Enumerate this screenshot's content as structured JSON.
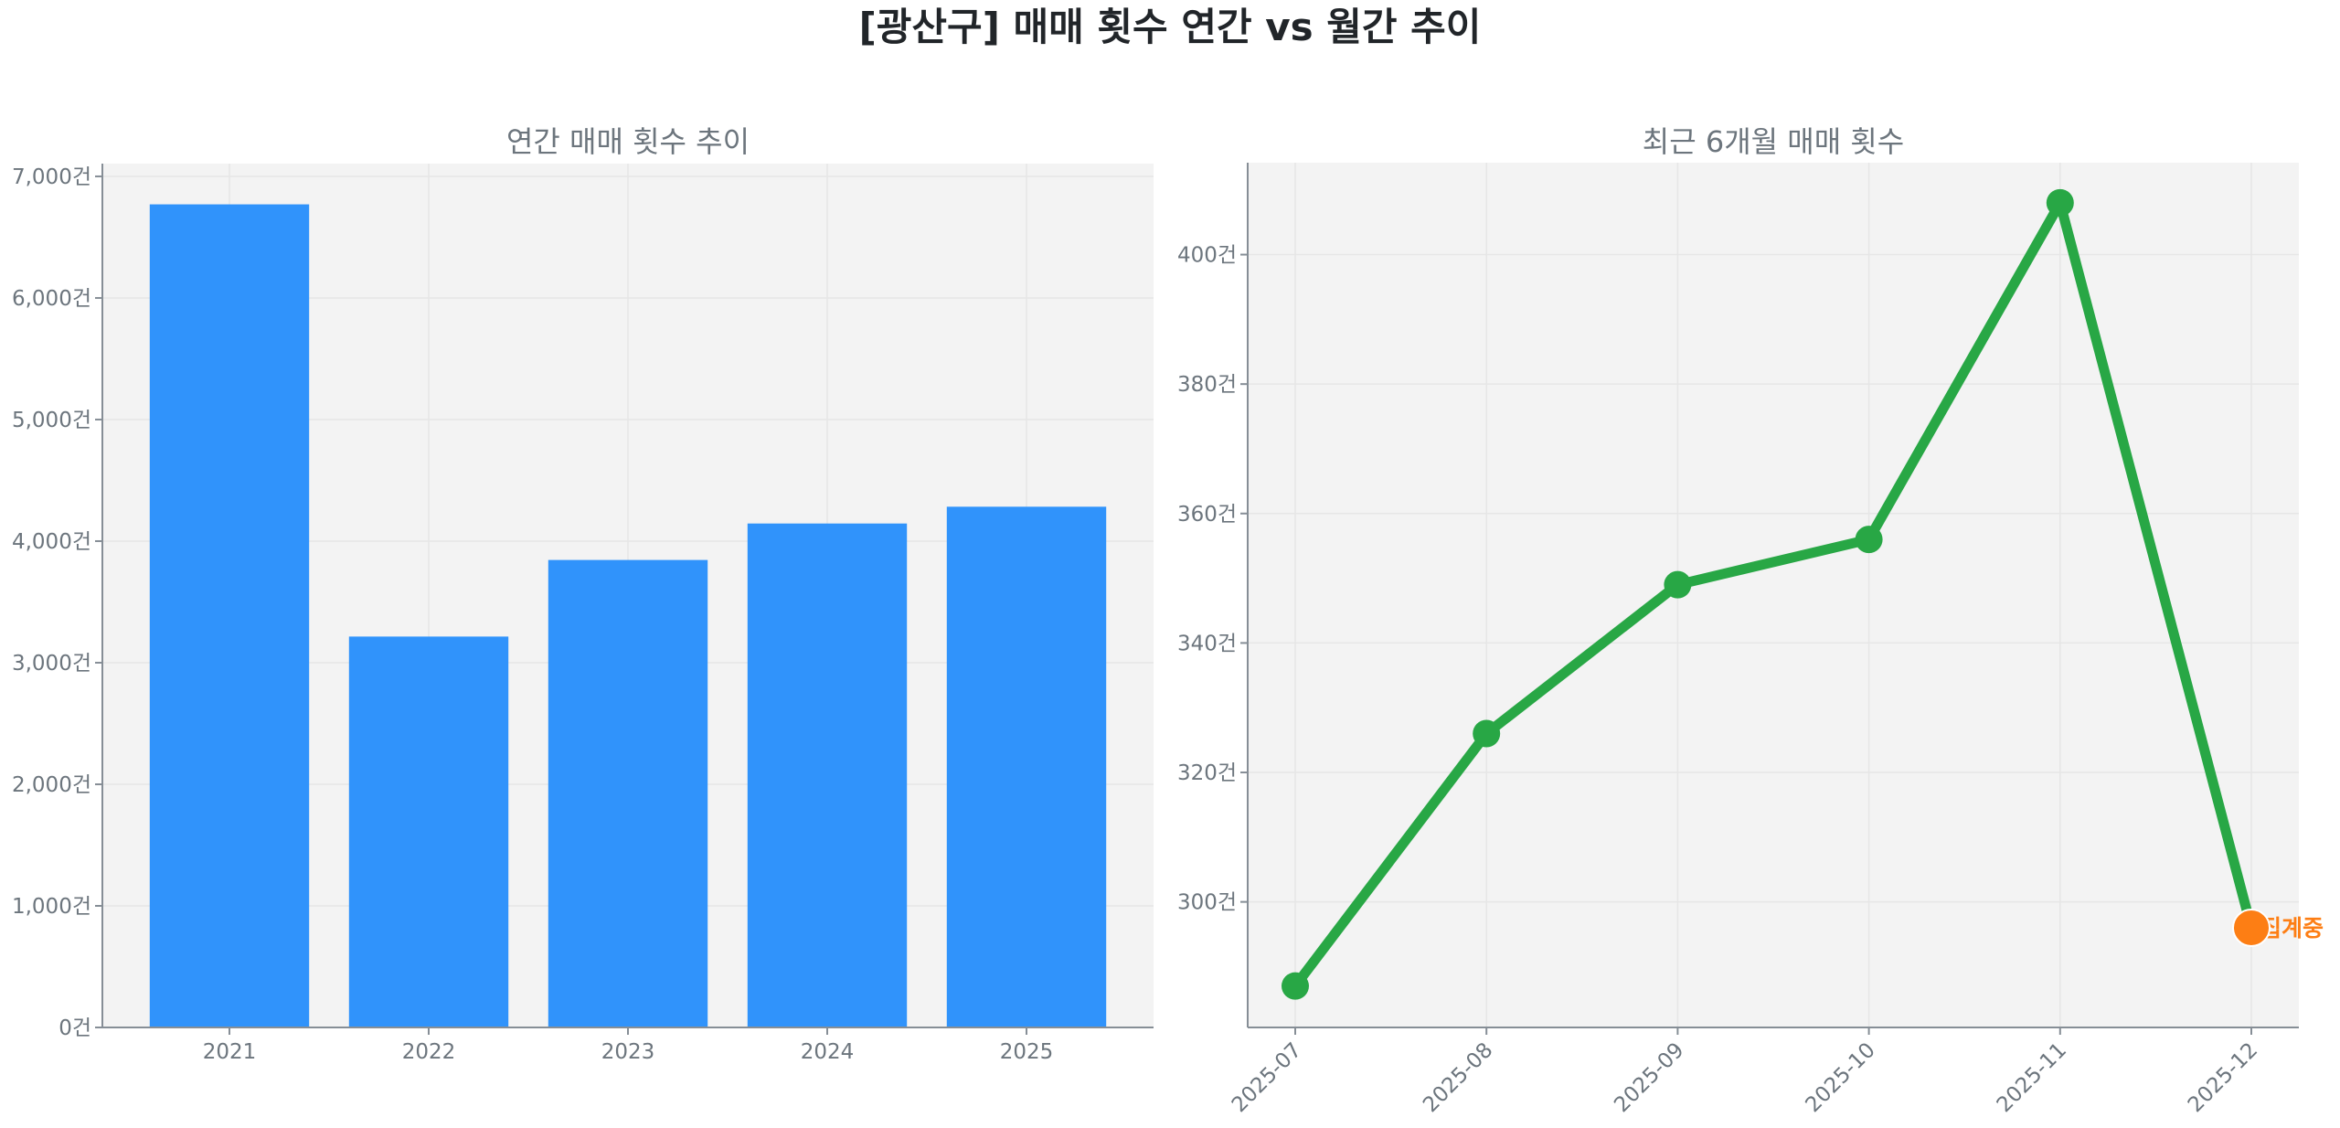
{
  "figure": {
    "title": "[광산구] 매매 횟수 연간 vs 월간 추이",
    "colors": {
      "bar": "#3093fb",
      "line": "#28a745",
      "current_marker": "#fd7e14",
      "plot_bg": "#f3f3f3",
      "grid": "#e6e6e6",
      "axis": "#868e96",
      "text": "#6c757d",
      "title": "#212529"
    }
  },
  "chart_data": [
    {
      "type": "bar",
      "title": "연간 매매 횟수 추이",
      "xlabel": "",
      "ylabel": "",
      "categories": [
        "2021",
        "2022",
        "2023",
        "2024",
        "2025"
      ],
      "values": [
        6770,
        3215,
        3845,
        4145,
        4283
      ],
      "ylim": [
        0,
        7105
      ],
      "yticks": [
        0,
        1000,
        2000,
        3000,
        4000,
        5000,
        6000,
        7000
      ],
      "ytick_labels": [
        "0건",
        "1,000건",
        "2,000건",
        "3,000건",
        "4,000건",
        "5,000건",
        "6,000건",
        "7,000건"
      ],
      "grid": true,
      "legend": null
    },
    {
      "type": "line",
      "title": "최근 6개월 매매 횟수",
      "xlabel": "",
      "ylabel": "",
      "categories": [
        "2025-07",
        "2025-08",
        "2025-09",
        "2025-10",
        "2025-11",
        "2025-12"
      ],
      "values": [
        287,
        326,
        349,
        356,
        408,
        296
      ],
      "ylim": [
        280.6,
        414.2
      ],
      "yticks": [
        300,
        320,
        340,
        360,
        380,
        400
      ],
      "ytick_labels": [
        "300건",
        "320건",
        "340건",
        "360건",
        "380건",
        "400건"
      ],
      "grid": true,
      "legend": null,
      "annotations": [
        {
          "x": "2025-12",
          "y": 296,
          "text": "집계중",
          "marker": "orange-dot"
        }
      ]
    }
  ]
}
